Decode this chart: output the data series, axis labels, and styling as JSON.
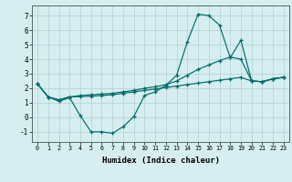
{
  "xlabel": "Humidex (Indice chaleur)",
  "bg_color": "#d6eef0",
  "grid_color": "#b0d0d4",
  "line_color": "#006a6a",
  "xlim": [
    -0.5,
    23.5
  ],
  "ylim": [
    -1.7,
    7.7
  ],
  "xticks": [
    0,
    1,
    2,
    3,
    4,
    5,
    6,
    7,
    8,
    9,
    10,
    11,
    12,
    13,
    14,
    15,
    16,
    17,
    18,
    19,
    20,
    21,
    22,
    23
  ],
  "yticks": [
    -1,
    0,
    1,
    2,
    3,
    4,
    5,
    6,
    7
  ],
  "line1_y": [
    2.3,
    1.4,
    1.1,
    1.35,
    0.1,
    -1.0,
    -1.0,
    -1.1,
    -0.65,
    0.05,
    1.5,
    1.75,
    2.2,
    2.9,
    5.2,
    7.1,
    7.0,
    6.35,
    4.1,
    5.3,
    2.5,
    2.45,
    2.65,
    2.75
  ],
  "line2_y": [
    2.3,
    1.4,
    1.2,
    1.4,
    1.42,
    1.45,
    1.5,
    1.55,
    1.65,
    1.75,
    1.85,
    1.95,
    2.05,
    2.15,
    2.25,
    2.35,
    2.45,
    2.55,
    2.65,
    2.75,
    2.5,
    2.45,
    2.65,
    2.75
  ],
  "line3_y": [
    2.3,
    1.4,
    1.2,
    1.4,
    1.5,
    1.55,
    1.6,
    1.65,
    1.75,
    1.85,
    2.0,
    2.1,
    2.25,
    2.5,
    2.9,
    3.3,
    3.6,
    3.9,
    4.15,
    4.0,
    2.5,
    2.45,
    2.65,
    2.75
  ]
}
